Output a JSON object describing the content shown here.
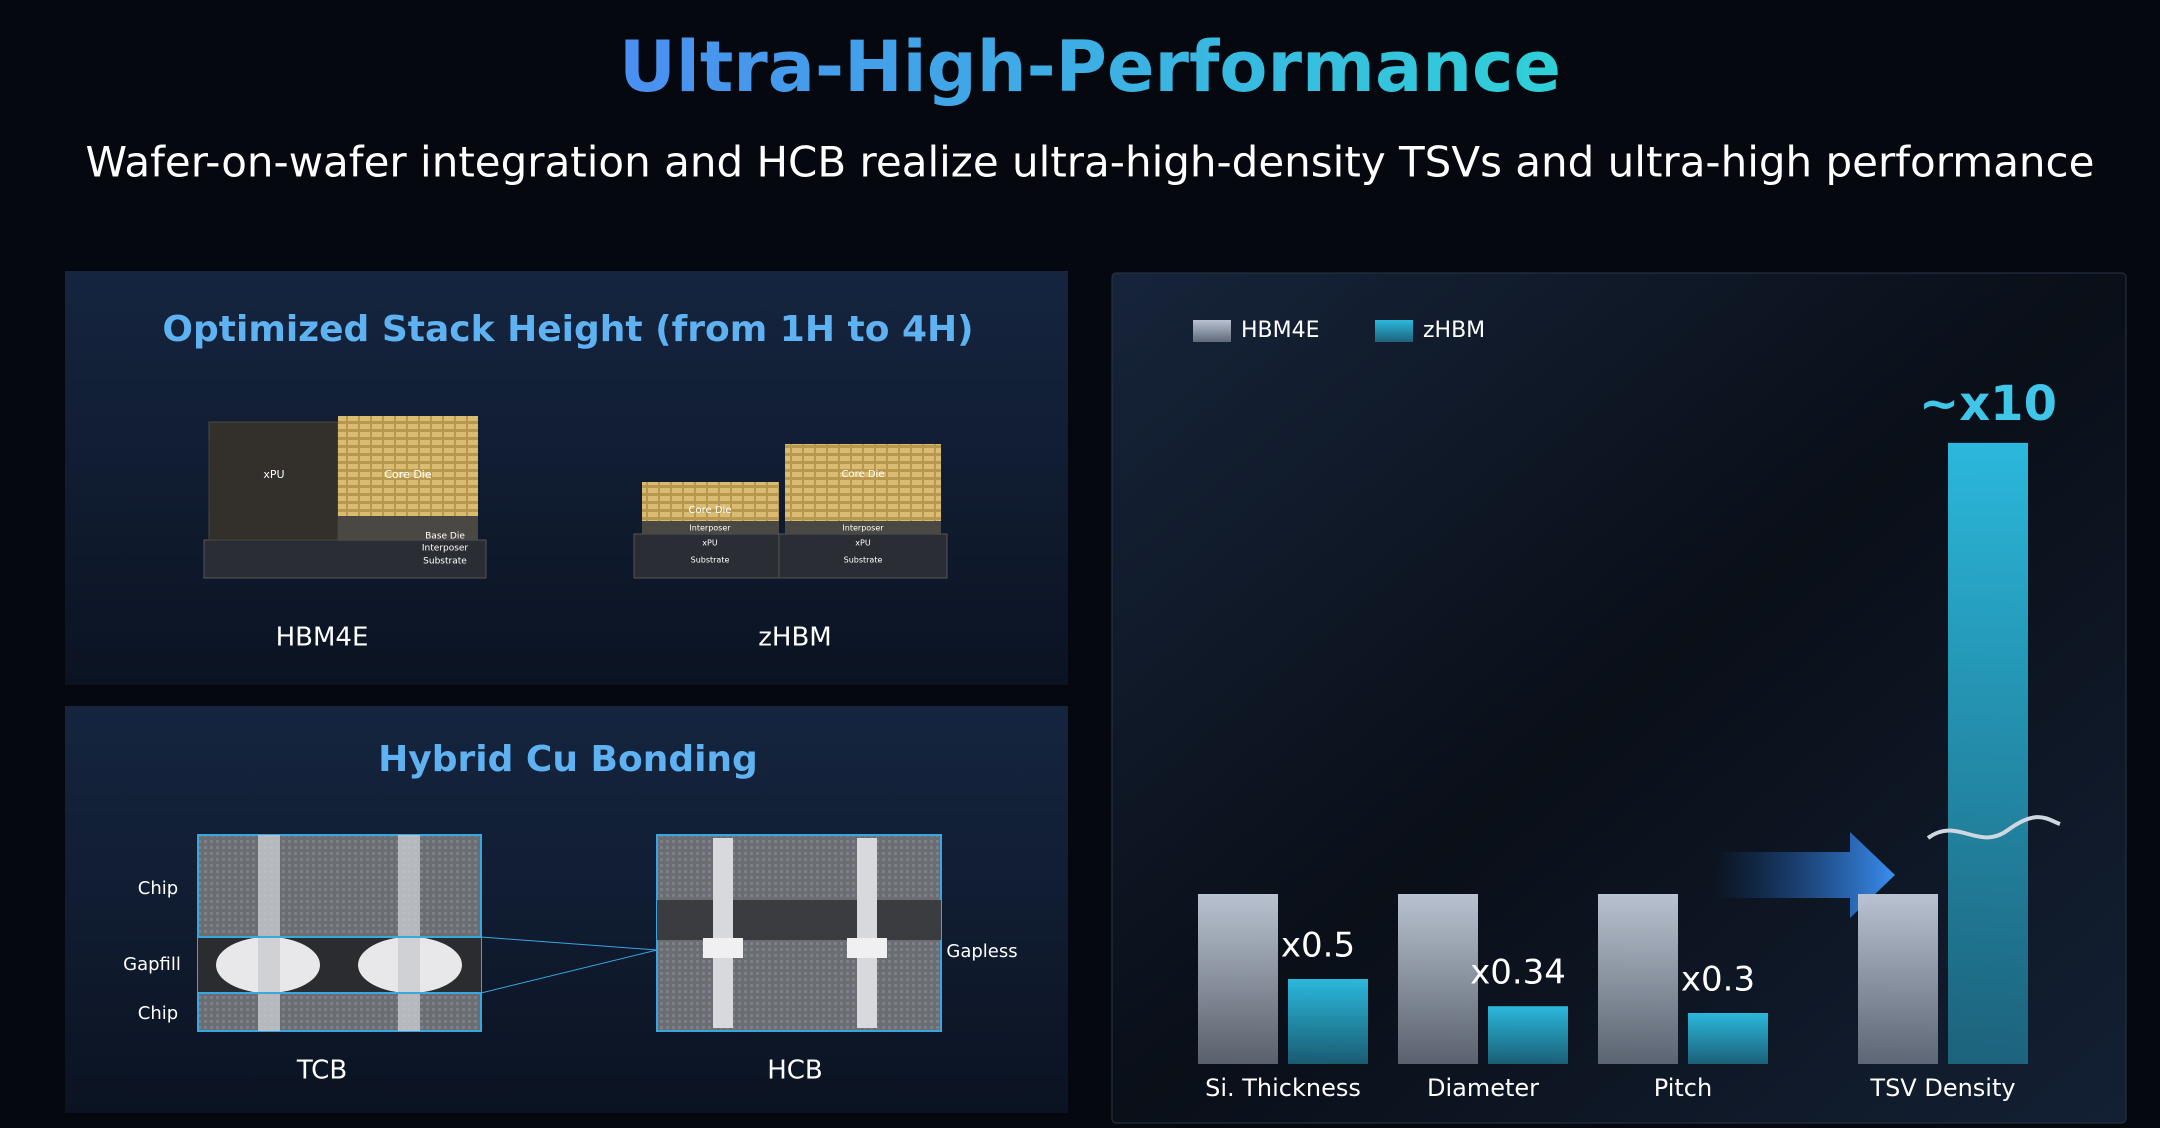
{
  "header": {
    "title": "Ultra-High-Performance",
    "subtitle": "Wafer-on-wafer integration and HCB realize ultra-high-density TSVs and ultra-high performance"
  },
  "stack_panel": {
    "title": "Optimized Stack Height (from 1H to 4H)",
    "hbm4e": {
      "label": "HBM4E",
      "layers": [
        "xPU",
        "Core Die",
        "Base Die",
        "Interposer",
        "Substrate"
      ]
    },
    "zhbm": {
      "label": "zHBM",
      "layers": [
        "Core Die",
        "Interposer",
        "xPU",
        "Substrate"
      ]
    }
  },
  "bonding_panel": {
    "title": "Hybrid Cu Bonding",
    "layer_labels": [
      "Chip",
      "Gapfill",
      "Chip"
    ],
    "gapless": "Gapless",
    "tcb": "TCB",
    "hcb": "HCB"
  },
  "chart_data": {
    "type": "bar",
    "categories": [
      "Si. Thickness",
      "Diameter",
      "Pitch",
      "TSV Density"
    ],
    "series": [
      {
        "name": "HBM4E",
        "color": "#b9c2d0",
        "values": [
          1,
          1,
          1,
          1
        ]
      },
      {
        "name": "zHBM",
        "color": "#2bb8dc",
        "values": [
          0.5,
          0.34,
          0.3,
          10
        ],
        "value_labels": [
          "x0.5",
          "x0.34",
          "x0.3",
          "~x10"
        ]
      }
    ],
    "axis_break": true,
    "legend": "top-left"
  }
}
